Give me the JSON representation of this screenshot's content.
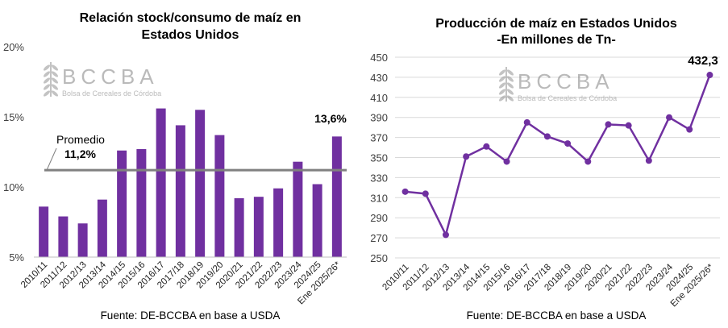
{
  "logo": {
    "name": "BCCBA",
    "subtitle": "Bolsa de Cereales de Córdoba"
  },
  "colors": {
    "series": "#7030A0",
    "average_line": "#808080",
    "grid": "#d9d9d9"
  },
  "chart_data": [
    {
      "type": "bar",
      "title": "Relación stock/consumo de maíz en Estados Unidos",
      "title_lines": [
        "Relación stock/consumo de maíz en",
        "Estados Unidos"
      ],
      "source": "Fuente: DE-BCCBA en base a USDA",
      "categories": [
        "2010/11",
        "2011/12",
        "2012/13",
        "2013/14",
        "2014/15",
        "2015/16",
        "2016/17",
        "2017/18",
        "2018/19",
        "2019/20",
        "2020/21",
        "2021/22",
        "2022/23",
        "2023/24",
        "2024/25",
        "Ene 2025/26*"
      ],
      "values": [
        8.6,
        7.9,
        7.4,
        9.1,
        12.6,
        12.7,
        15.6,
        14.4,
        15.5,
        13.7,
        9.2,
        9.3,
        9.9,
        11.8,
        10.2,
        13.6
      ],
      "ylim": [
        5,
        20
      ],
      "yticks": [
        "5%",
        "10%",
        "15%",
        "20%"
      ],
      "ytick_values": [
        5,
        10,
        15,
        20
      ],
      "grid": false,
      "average": {
        "label": "Promedio",
        "value_label": "11,2%",
        "value": 11.2
      },
      "last_label": "13,6%"
    },
    {
      "type": "line",
      "title": "Producción de maíz en Estados Unidos -En millones de Tn-",
      "title_lines": [
        "Producción de maíz en Estados Unidos",
        "-En millones de Tn-"
      ],
      "source": "Fuente: DE-BCCBA en base a USDA",
      "categories": [
        "2010/11",
        "2011/12",
        "2012/13",
        "2013/14",
        "2014/15",
        "2015/16",
        "2016/17",
        "2017/18",
        "2018/19",
        "2019/20",
        "2020/21",
        "2021/22",
        "2022/23",
        "2023/24",
        "2024/25",
        "Ene 2025/26*"
      ],
      "values": [
        316,
        314,
        273,
        351,
        361,
        346,
        385,
        371,
        364,
        346,
        383,
        382,
        347,
        390,
        378,
        432.3
      ],
      "ylim": [
        250,
        450
      ],
      "yticks": [
        "250",
        "270",
        "290",
        "310",
        "330",
        "350",
        "370",
        "390",
        "410",
        "430",
        "450"
      ],
      "ytick_values": [
        250,
        270,
        290,
        310,
        330,
        350,
        370,
        390,
        410,
        430,
        450
      ],
      "grid": true,
      "last_label": "432,3"
    }
  ]
}
